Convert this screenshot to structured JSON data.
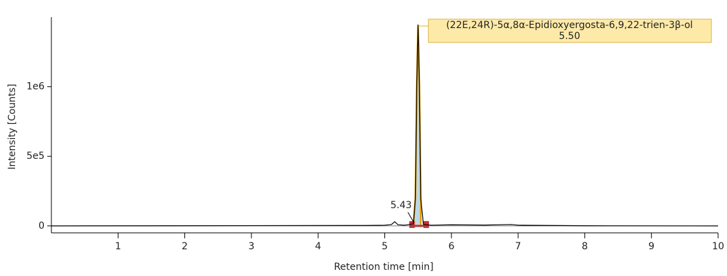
{
  "chart_data": {
    "type": "line",
    "x_label": "Retention time [min]",
    "y_label": "Intensity [Counts]",
    "xlim": [
      0,
      10
    ],
    "xticks": [
      1,
      2,
      3,
      4,
      5,
      6,
      7,
      8,
      9,
      10
    ],
    "ylim": [
      -50000,
      1500000
    ],
    "yticks": [
      0,
      {
        "value": 500000,
        "label": "5e5"
      },
      {
        "value": 1000000,
        "label": "1e6"
      }
    ],
    "series": [
      {
        "color": "#000000",
        "x": [
          0,
          4.7,
          5.0,
          5.1,
          5.15,
          5.2,
          5.3,
          5.43,
          5.46,
          5.48,
          5.5,
          5.52,
          5.54,
          5.58,
          5.7,
          6.0,
          6.5,
          6.9,
          7.0,
          7.5,
          8,
          10
        ],
        "values": [
          0,
          3000,
          5000,
          10000,
          30000,
          8000,
          5000,
          15000,
          200000,
          1000000,
          1446000,
          1000000,
          200000,
          10000,
          5000,
          8000,
          6000,
          10000,
          5000,
          3000,
          1000,
          0
        ]
      }
    ],
    "peaks": {
      "names": [
        "(22E,24R)-5α,8α-Epidioxyergosta-6,9,22-trien-3β-ol",
        null
      ],
      "values": [
        5.5,
        5.43
      ],
      "value_labels": [
        "5.50",
        "5.43"
      ]
    }
  }
}
